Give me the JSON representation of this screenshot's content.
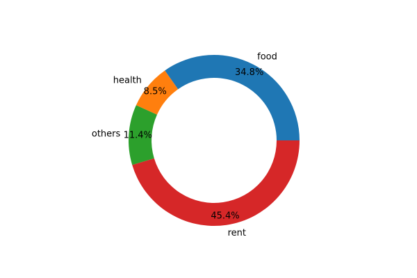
{
  "chart_data": {
    "type": "pie",
    "donut": true,
    "start_angle_deg": 0,
    "direction": "counterclockwise",
    "legend": "none",
    "slices": [
      {
        "label": "food",
        "value": 34.8,
        "pct_label": "34.8%",
        "color": "#1f77b4"
      },
      {
        "label": "health",
        "value": 8.5,
        "pct_label": "8.5%",
        "color": "#ff7f0e"
      },
      {
        "label": "others",
        "value": 11.4,
        "pct_label": "11.4%",
        "color": "#2ca02c"
      },
      {
        "label": "rent",
        "value": 45.4,
        "pct_label": "45.4%",
        "color": "#d62728"
      }
    ]
  }
}
